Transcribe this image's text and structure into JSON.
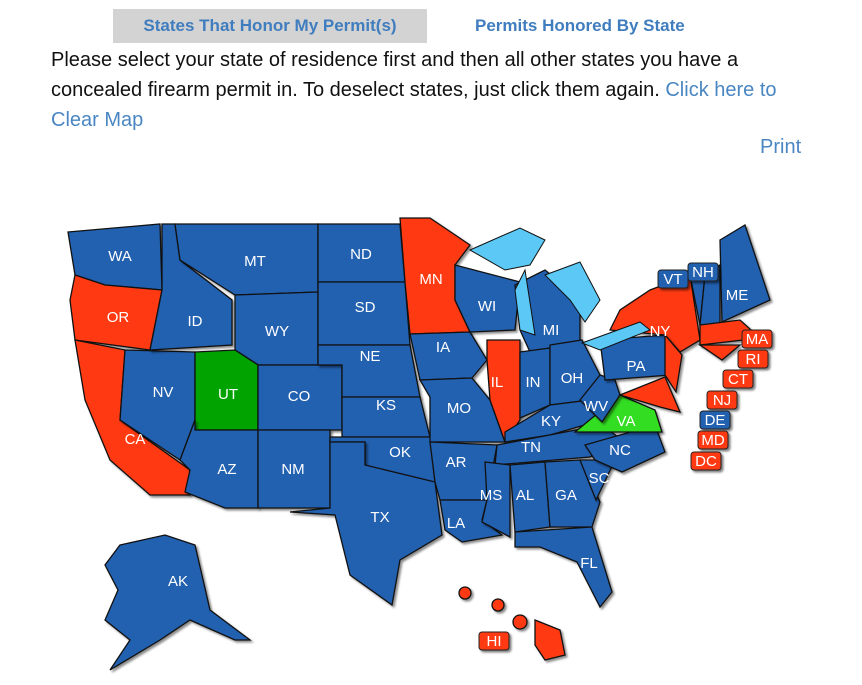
{
  "tabs": {
    "active": "States That Honor My Permit(s)",
    "inactive": "Permits Honored By State"
  },
  "intro": {
    "text": "Please select your state of residence first and then all other states you have a concealed firearm permit in. To deselect states, just click them again. ",
    "clear_link": "Click here to Clear Map"
  },
  "print_label": "Print",
  "colors": {
    "honored": "#2260b0",
    "not_honored": "#ff3a12",
    "resident": "#00a300",
    "selected": "#33dd22",
    "lakes": "#5bc8f5"
  },
  "states": {
    "WA": "honored",
    "OR": "not_honored",
    "CA": "not_honored",
    "NV": "honored",
    "ID": "honored",
    "MT": "honored",
    "WY": "honored",
    "UT": "resident",
    "CO": "honored",
    "AZ": "honored",
    "NM": "honored",
    "ND": "honored",
    "SD": "honored",
    "NE": "honored",
    "KS": "honored",
    "OK": "honored",
    "TX": "honored",
    "MN": "not_honored",
    "IA": "honored",
    "MO": "honored",
    "AR": "honored",
    "LA": "honored",
    "WI": "honored",
    "IL": "not_honored",
    "MI": "honored",
    "IN": "honored",
    "OH": "honored",
    "KY": "honored",
    "TN": "honored",
    "MS": "honored",
    "AL": "honored",
    "GA": "honored",
    "FL": "honored",
    "SC": "honored",
    "NC": "honored",
    "VA": "selected",
    "WV": "honored",
    "PA": "honored",
    "NY": "not_honored",
    "ME": "honored",
    "AK": "honored",
    "HI": "not_honored",
    "VT": "honored",
    "NH": "honored",
    "MA": "not_honored",
    "RI": "not_honored",
    "CT": "not_honored",
    "NJ": "not_honored",
    "DE": "honored",
    "MD": "not_honored",
    "DC": "not_honored"
  }
}
